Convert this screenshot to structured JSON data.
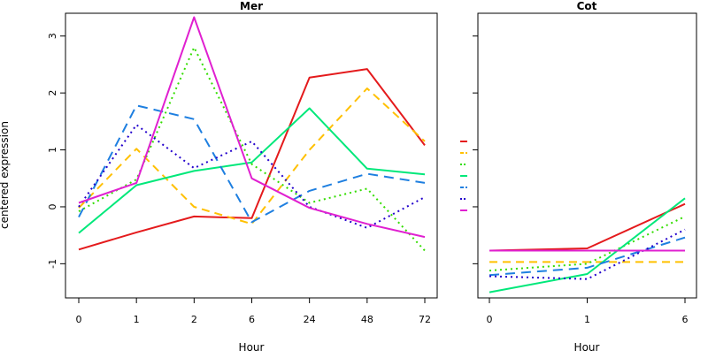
{
  "chart_data": [
    {
      "type": "line",
      "title": "Mer",
      "xlabel": "Hour",
      "ylabel": "centered expression",
      "categories": [
        "0",
        "1",
        "2",
        "6",
        "24",
        "48",
        "72"
      ],
      "ylim": [
        -1.6,
        3.4
      ],
      "yticks": [
        -1,
        0,
        1,
        2,
        3
      ],
      "grid": false,
      "series": [
        {
          "color": "#E41A1C",
          "dash": "solid",
          "values": [
            -0.75,
            -0.45,
            -0.17,
            -0.2,
            2.27,
            2.42,
            1.08
          ]
        },
        {
          "color": "#FFC000",
          "dash": "dashed",
          "values": [
            -0.02,
            1.02,
            0.0,
            -0.3,
            1.0,
            2.08,
            1.15
          ]
        },
        {
          "color": "#33DD00",
          "dash": "dotted",
          "values": [
            -0.08,
            0.48,
            2.8,
            0.75,
            0.07,
            0.32,
            -0.77
          ]
        },
        {
          "color": "#00E87A",
          "dash": "solid",
          "values": [
            -0.46,
            0.38,
            0.63,
            0.78,
            1.73,
            0.67,
            0.57
          ]
        },
        {
          "color": "#1E7FE0",
          "dash": "longdash",
          "values": [
            -0.18,
            1.78,
            1.54,
            -0.27,
            0.28,
            0.58,
            0.42
          ]
        },
        {
          "color": "#2200CC",
          "dash": "dotted",
          "values": [
            0.0,
            1.44,
            0.68,
            1.15,
            0.0,
            -0.37,
            0.17
          ]
        },
        {
          "color": "#E020D0",
          "dash": "solid",
          "values": [
            0.07,
            0.42,
            3.33,
            0.5,
            -0.02,
            -0.3,
            -0.53
          ]
        }
      ]
    },
    {
      "type": "line",
      "title": "Cot",
      "xlabel": "Hour",
      "ylabel": "",
      "categories": [
        "0",
        "1",
        "6"
      ],
      "ylim": [
        -1.6,
        3.4
      ],
      "grid": false,
      "series": [
        {
          "color": "#E41A1C",
          "dash": "solid",
          "values": [
            -0.77,
            -0.73,
            0.05
          ]
        },
        {
          "color": "#FFC000",
          "dash": "dashed",
          "values": [
            -0.97,
            -0.97,
            -0.97
          ]
        },
        {
          "color": "#33DD00",
          "dash": "dotted",
          "values": [
            -1.12,
            -1.0,
            -0.17
          ]
        },
        {
          "color": "#00E87A",
          "dash": "solid",
          "values": [
            -1.5,
            -1.18,
            0.15
          ]
        },
        {
          "color": "#1E7FE0",
          "dash": "longdash",
          "values": [
            -1.2,
            -1.07,
            -0.54
          ]
        },
        {
          "color": "#2200CC",
          "dash": "dotted",
          "values": [
            -1.22,
            -1.27,
            -0.4
          ]
        },
        {
          "color": "#E020D0",
          "dash": "solid",
          "values": [
            -0.77,
            -0.77,
            -0.77
          ]
        }
      ]
    }
  ]
}
